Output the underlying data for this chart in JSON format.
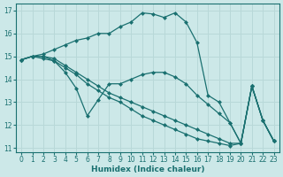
{
  "xlabel": "Humidex (Indice chaleur)",
  "bg_color": "#cce8e8",
  "grid_color": "#b8d8d8",
  "line_color": "#1a7070",
  "xlim": [
    -0.5,
    23.5
  ],
  "ylim": [
    10.8,
    17.3
  ],
  "xticks": [
    0,
    1,
    2,
    3,
    4,
    5,
    6,
    7,
    8,
    9,
    10,
    11,
    12,
    13,
    14,
    15,
    16,
    17,
    18,
    19,
    20,
    21,
    22,
    23
  ],
  "yticks": [
    11,
    12,
    13,
    14,
    15,
    16,
    17
  ],
  "lines": [
    {
      "x": [
        0,
        1,
        2,
        3,
        4,
        5,
        6,
        7,
        8,
        9,
        10,
        11,
        12,
        13,
        14,
        15,
        16,
        17,
        18,
        19,
        20,
        21,
        22,
        23
      ],
      "y": [
        14.85,
        15.0,
        15.1,
        15.3,
        15.5,
        15.7,
        15.8,
        16.0,
        16.0,
        16.3,
        16.5,
        16.9,
        16.85,
        16.7,
        16.9,
        16.5,
        15.6,
        13.3,
        13.0,
        12.1,
        11.2,
        13.7,
        12.2,
        11.3
      ]
    },
    {
      "x": [
        0,
        1,
        2,
        3,
        4,
        5,
        6,
        7,
        8,
        9,
        10,
        11,
        12,
        13,
        14,
        15,
        16,
        17,
        18,
        19,
        20,
        21,
        22,
        23
      ],
      "y": [
        14.85,
        15.0,
        14.9,
        14.8,
        14.3,
        13.6,
        12.4,
        13.1,
        13.8,
        13.8,
        14.0,
        14.2,
        14.3,
        14.3,
        14.1,
        13.8,
        13.3,
        12.9,
        12.5,
        12.1,
        11.2,
        13.7,
        12.2,
        11.3
      ]
    },
    {
      "x": [
        0,
        1,
        2,
        3,
        4,
        5,
        6,
        7,
        8,
        9,
        10,
        11,
        12,
        13,
        14,
        15,
        16,
        17,
        18,
        19,
        20,
        21,
        22,
        23
      ],
      "y": [
        14.85,
        15.0,
        15.0,
        14.8,
        14.5,
        14.2,
        13.8,
        13.5,
        13.2,
        13.0,
        12.7,
        12.4,
        12.2,
        12.0,
        11.8,
        11.6,
        11.4,
        11.3,
        11.2,
        11.1,
        11.2,
        13.7,
        12.2,
        11.3
      ]
    },
    {
      "x": [
        0,
        1,
        2,
        3,
        4,
        5,
        6,
        7,
        8,
        9,
        10,
        11,
        12,
        13,
        14,
        15,
        16,
        17,
        18,
        19,
        20,
        21,
        22,
        23
      ],
      "y": [
        14.85,
        15.0,
        15.0,
        14.9,
        14.6,
        14.3,
        14.0,
        13.7,
        13.4,
        13.2,
        13.0,
        12.8,
        12.6,
        12.4,
        12.2,
        12.0,
        11.8,
        11.6,
        11.4,
        11.2,
        11.2,
        13.7,
        12.2,
        11.3
      ]
    }
  ]
}
